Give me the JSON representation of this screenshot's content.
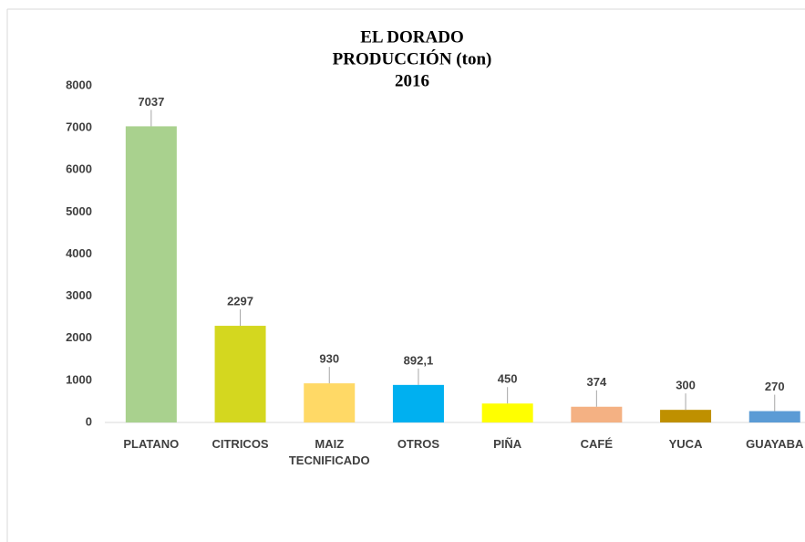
{
  "chart_data": {
    "type": "bar",
    "title": [
      "EL DORADO",
      "PRODUCCIÓN (ton)",
      "2016"
    ],
    "categories": [
      "PLATANO",
      "CITRICOS",
      "MAIZ TECNIFICADO",
      "OTROS",
      "PIÑA",
      "CAFÉ",
      "YUCA",
      "GUAYABA"
    ],
    "values": [
      7037,
      2297,
      930,
      892.1,
      450,
      374,
      300,
      270
    ],
    "value_labels": [
      "7037",
      "2297",
      "930",
      "892,1",
      "450",
      "374",
      "300",
      "270"
    ],
    "colors": [
      "#a9d18e",
      "#d4d71f",
      "#ffd966",
      "#00b0f0",
      "#ffff00",
      "#f4b183",
      "#bf9000",
      "#5b9bd5"
    ],
    "ylim": [
      0,
      8000
    ],
    "yticks": [
      0,
      1000,
      2000,
      3000,
      4000,
      5000,
      6000,
      7000,
      8000
    ],
    "grid": false
  }
}
